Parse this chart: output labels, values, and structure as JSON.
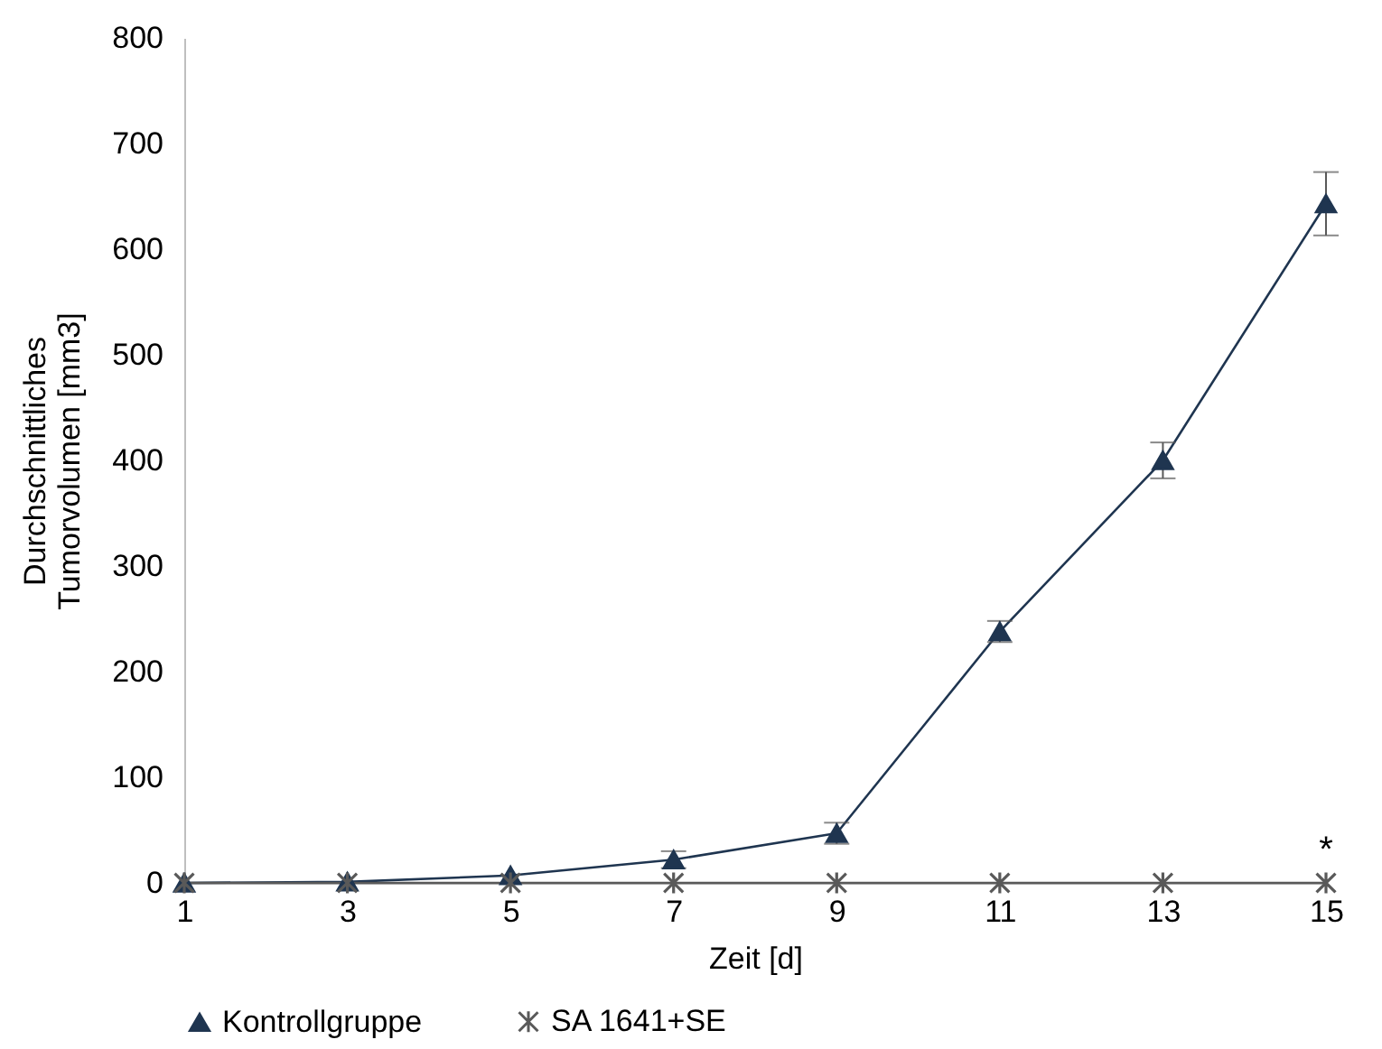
{
  "chart_data": {
    "type": "line",
    "xlabel": "Zeit [d]",
    "ylabel": "Durchschnittliches Tumorvolumen [mm3]",
    "x": [
      1,
      3,
      5,
      7,
      9,
      11,
      13,
      15
    ],
    "series": [
      {
        "name": "Kontrollgruppe",
        "color": "#1f3550",
        "marker": "triangle",
        "values": [
          0,
          1,
          7,
          22,
          47,
          238,
          400,
          643
        ],
        "errors": [
          null,
          null,
          null,
          8,
          10,
          10,
          17,
          30
        ]
      },
      {
        "name": "SA 1641+SE",
        "color": "#595959",
        "marker": "cross",
        "values": [
          0,
          0,
          0,
          0,
          0,
          0,
          0,
          0
        ]
      }
    ],
    "xlim": [
      1,
      15
    ],
    "xticks": [
      1,
      3,
      5,
      7,
      9,
      11,
      13,
      15
    ],
    "ylim": [
      0,
      800
    ],
    "yticks": [
      0,
      100,
      200,
      300,
      400,
      500,
      600,
      700,
      800
    ],
    "annotations": [
      "*"
    ],
    "grid": false,
    "legend": "bottom"
  }
}
